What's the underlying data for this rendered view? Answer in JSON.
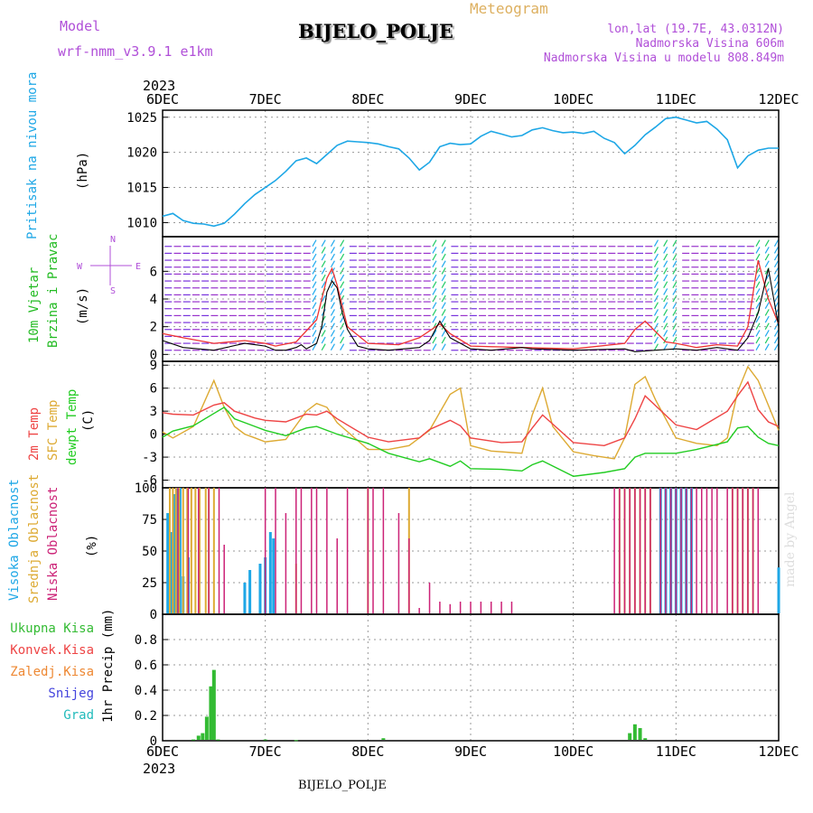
{
  "header": {
    "model_label": "Model",
    "model_name": "wrf-nmm_v3.9.1 e1km",
    "program_label": "Meteogram",
    "station": "BIJELO_POLJE",
    "coords": "lon,lat (19.7E, 43.0312N)",
    "altitude": "Nadmorska Visina 606m",
    "model_altitude": "Nadmorska Visina u modelu 808.849m"
  },
  "footer": {
    "station": "BIJELO_POLJE",
    "credit": "made by Angel"
  },
  "time_axis": {
    "year": "2023",
    "ticks": [
      "6DEC",
      "7DEC",
      "8DEC",
      "9DEC",
      "10DEC",
      "11DEC",
      "12DEC"
    ]
  },
  "colors": {
    "pressure": "#1ea7e6",
    "wind_label": "#22bb22",
    "wind_speed": "#000000",
    "gust": "#ee3333",
    "temp2m": "#ee4444",
    "sfc_temp": "#ddaa33",
    "dewpoint": "#22cc22",
    "cloud_high": "#1ea7e6",
    "cloud_mid": "#ddaa33",
    "cloud_low": "#cc2277",
    "precip_total": "#33bb33",
    "precip_conv": "#ee4444",
    "precip_frz": "#ee8833",
    "snow": "#4444dd",
    "hail": "#22bbbb",
    "purple_text": "#b04fd8",
    "grid": "#999999"
  },
  "chart_data": [
    {
      "type": "line",
      "panel": "pressure",
      "ylabel": [
        "Pritisak na nivou mora",
        "(hPa)"
      ],
      "ylim": [
        1008,
        1026
      ],
      "yticks": [
        1010,
        1015,
        1020,
        1025
      ],
      "grid": true,
      "series": [
        {
          "x": [
            0,
            0.1,
            0.2,
            0.3,
            0.4,
            0.5,
            0.6,
            0.7,
            0.8,
            0.9,
            1.0,
            1.1,
            1.2,
            1.3,
            1.4,
            1.5,
            1.6,
            1.7,
            1.8,
            1.9,
            2.0,
            2.1,
            2.2,
            2.3,
            2.4,
            2.5,
            2.6,
            2.7,
            2.8,
            2.9,
            3.0,
            3.1,
            3.2,
            3.3,
            3.4,
            3.5,
            3.6,
            3.7,
            3.8,
            3.9,
            4.0,
            4.1,
            4.2,
            4.3,
            4.4,
            4.5,
            4.6,
            4.7,
            4.8,
            4.9,
            5.0,
            5.1,
            5.2,
            5.3,
            5.4,
            5.5,
            5.6,
            5.7,
            5.8,
            5.9,
            6.0
          ],
          "values": [
            1010.9,
            1011.3,
            1010.3,
            1009.9,
            1009.8,
            1009.5,
            1009.9,
            1011.2,
            1012.7,
            1014.0,
            1015.0,
            1016.0,
            1017.3,
            1018.8,
            1019.2,
            1018.4,
            1019.7,
            1021.0,
            1021.6,
            1021.5,
            1021.4,
            1021.2,
            1020.8,
            1020.5,
            1019.2,
            1017.5,
            1018.6,
            1020.8,
            1021.3,
            1021.1,
            1021.2,
            1022.3,
            1023.0,
            1022.6,
            1022.2,
            1022.4,
            1023.2,
            1023.5,
            1023.1,
            1022.8,
            1022.9,
            1022.7,
            1023.0,
            1022.0,
            1021.4,
            1019.8,
            1021.0,
            1022.5,
            1023.6,
            1024.8,
            1025.0,
            1024.6,
            1024.2,
            1024.4,
            1023.3,
            1021.8,
            1017.8,
            1019.5,
            1020.3,
            1020.6,
            1020.6
          ]
        }
      ]
    },
    {
      "type": "line",
      "panel": "wind",
      "ylabel": [
        "10m Vjetar",
        "Brzina i Pravac",
        "(m/s)"
      ],
      "compass": {
        "w": "W",
        "e": "E",
        "n": "N",
        "s": "S"
      },
      "ylim": [
        -0.5,
        8.5
      ],
      "yticks": [
        0,
        2,
        4,
        6
      ],
      "grid": true,
      "series": [
        {
          "name": "speed",
          "x": [
            0,
            0.2,
            0.5,
            0.8,
            1.0,
            1.1,
            1.2,
            1.3,
            1.35,
            1.4,
            1.5,
            1.55,
            1.6,
            1.65,
            1.7,
            1.75,
            1.8,
            1.9,
            2.0,
            2.2,
            2.5,
            2.6,
            2.7,
            2.8,
            3.0,
            3.2,
            3.5,
            3.6,
            4.0,
            4.5,
            4.6,
            4.8,
            5.0,
            5.2,
            5.4,
            5.6,
            5.7,
            5.8,
            5.9,
            6.0
          ],
          "values": [
            1.0,
            0.5,
            0.3,
            0.8,
            0.6,
            0.3,
            0.3,
            0.5,
            0.7,
            0.4,
            0.8,
            2.0,
            4.5,
            5.3,
            4.8,
            3.0,
            1.8,
            0.6,
            0.4,
            0.3,
            0.5,
            1.0,
            2.4,
            1.2,
            0.4,
            0.3,
            0.5,
            0.4,
            0.3,
            0.4,
            0.2,
            0.3,
            0.4,
            0.3,
            0.5,
            0.3,
            1.2,
            3.0,
            6.2,
            2.0
          ]
        },
        {
          "name": "gust",
          "x": [
            0,
            0.2,
            0.5,
            0.8,
            1.0,
            1.1,
            1.3,
            1.5,
            1.6,
            1.65,
            1.7,
            1.8,
            2.0,
            2.3,
            2.5,
            2.7,
            2.8,
            3.0,
            3.5,
            4.0,
            4.5,
            4.6,
            4.7,
            4.9,
            5.0,
            5.2,
            5.4,
            5.6,
            5.7,
            5.8,
            5.9,
            6.0
          ],
          "values": [
            1.5,
            1.2,
            0.8,
            1.0,
            0.8,
            0.6,
            0.9,
            2.5,
            5.5,
            6.2,
            5.0,
            2.0,
            0.8,
            0.7,
            1.2,
            2.2,
            1.5,
            0.6,
            0.5,
            0.4,
            0.8,
            1.8,
            2.4,
            0.9,
            0.8,
            0.5,
            0.7,
            0.6,
            2.0,
            6.8,
            4.0,
            2.2
          ]
        }
      ]
    },
    {
      "type": "line",
      "panel": "temperature",
      "ylabel": [
        "2m Temp",
        "SFC Temp",
        "dewpt Temp",
        "(C)"
      ],
      "ylim": [
        -7,
        9.5
      ],
      "yticks": [
        -6,
        -3,
        0,
        3,
        6,
        9
      ],
      "grid": true,
      "series": [
        {
          "name": "2m Temp",
          "x": [
            0,
            0.1,
            0.3,
            0.5,
            0.6,
            0.7,
            0.9,
            1.0,
            1.2,
            1.4,
            1.5,
            1.6,
            1.7,
            2.0,
            2.2,
            2.5,
            2.6,
            2.8,
            2.9,
            3.0,
            3.3,
            3.5,
            3.6,
            3.7,
            4.0,
            4.3,
            4.5,
            4.6,
            4.7,
            5.0,
            5.2,
            5.5,
            5.6,
            5.7,
            5.8,
            5.9,
            6.0
          ],
          "values": [
            2.8,
            2.6,
            2.5,
            3.8,
            4.1,
            3.0,
            2.1,
            1.8,
            1.6,
            2.6,
            2.5,
            3.0,
            2.0,
            -0.4,
            -1.0,
            -0.5,
            0.6,
            1.8,
            1.1,
            -0.5,
            -1.1,
            -1.0,
            0.8,
            2.5,
            -1.1,
            -1.5,
            -0.5,
            2.0,
            5.0,
            1.2,
            0.6,
            3.0,
            5.0,
            6.8,
            3.2,
            1.6,
            1.0
          ]
        },
        {
          "name": "SFC Temp",
          "x": [
            0,
            0.1,
            0.3,
            0.4,
            0.5,
            0.6,
            0.7,
            0.8,
            0.9,
            1.0,
            1.2,
            1.4,
            1.5,
            1.6,
            1.7,
            2.0,
            2.2,
            2.4,
            2.5,
            2.6,
            2.8,
            2.9,
            3.0,
            3.2,
            3.4,
            3.5,
            3.6,
            3.7,
            3.8,
            4.0,
            4.2,
            4.4,
            4.5,
            4.6,
            4.7,
            4.8,
            5.0,
            5.2,
            5.4,
            5.5,
            5.6,
            5.7,
            5.8,
            6.0
          ],
          "values": [
            0.3,
            -0.5,
            1.0,
            4.0,
            7.0,
            3.5,
            1.0,
            0.0,
            -0.5,
            -1.0,
            -0.7,
            3.0,
            4.0,
            3.5,
            1.5,
            -2.0,
            -2.0,
            -1.5,
            -0.5,
            0.5,
            5.2,
            6.0,
            -1.5,
            -2.2,
            -2.4,
            -2.5,
            2.5,
            6.0,
            1.0,
            -2.3,
            -2.8,
            -3.2,
            -0.5,
            6.5,
            7.5,
            4.5,
            -0.5,
            -1.2,
            -1.5,
            -0.5,
            5.5,
            8.8,
            7.0,
            0.5
          ]
        },
        {
          "name": "dewpt Temp",
          "x": [
            0,
            0.1,
            0.3,
            0.5,
            0.6,
            0.7,
            0.9,
            1.0,
            1.2,
            1.4,
            1.5,
            1.6,
            1.7,
            2.0,
            2.2,
            2.5,
            2.6,
            2.8,
            2.9,
            3.0,
            3.3,
            3.5,
            3.6,
            3.7,
            4.0,
            4.3,
            4.5,
            4.6,
            4.7,
            5.0,
            5.2,
            5.5,
            5.6,
            5.7,
            5.8,
            5.9,
            6.0
          ],
          "values": [
            -0.4,
            0.4,
            1.1,
            2.7,
            3.5,
            2.0,
            1.0,
            0.5,
            -0.2,
            0.8,
            1.0,
            0.5,
            0.0,
            -1.2,
            -2.5,
            -3.6,
            -3.2,
            -4.2,
            -3.5,
            -4.5,
            -4.6,
            -4.8,
            -4.0,
            -3.5,
            -5.5,
            -5.0,
            -4.5,
            -3.0,
            -2.5,
            -2.5,
            -2.0,
            -1.0,
            0.8,
            1.0,
            -0.4,
            -1.2,
            -1.5
          ]
        }
      ]
    },
    {
      "type": "bar",
      "panel": "clouds",
      "ylabel": [
        "Visoka Oblacnost",
        "Srednja Oblacnost",
        "Niska Oblacnost",
        "(%)"
      ],
      "ylim": [
        0,
        100
      ],
      "yticks": [
        0,
        25,
        50,
        75,
        100
      ],
      "grid": true,
      "series": [
        {
          "name": "Visoka Oblacnost",
          "x": [
            0.05,
            0.08,
            0.11,
            0.14,
            0.17,
            0.2,
            0.25,
            0.8,
            0.85,
            0.95,
            1.0,
            1.05,
            1.08,
            4.85,
            4.9,
            4.95,
            5.0,
            5.05,
            5.1,
            5.15,
            6.0
          ],
          "values": [
            80,
            65,
            95,
            100,
            100,
            30,
            45,
            25,
            35,
            40,
            45,
            65,
            60,
            100,
            100,
            100,
            100,
            100,
            100,
            100,
            37
          ]
        },
        {
          "name": "Srednja Oblacnost",
          "x": [
            0.07,
            0.1,
            0.13,
            0.16,
            0.2,
            0.24,
            0.28,
            0.32,
            0.36,
            0.42,
            0.45,
            0.5,
            1.3,
            2.0,
            2.4,
            4.45,
            4.5,
            4.55,
            4.6,
            4.65,
            4.7,
            4.75,
            5.55,
            5.6,
            5.65,
            5.7,
            5.75
          ],
          "values": [
            100,
            100,
            100,
            100,
            100,
            100,
            100,
            100,
            100,
            100,
            100,
            100,
            40,
            100,
            100,
            100,
            100,
            100,
            100,
            100,
            100,
            100,
            100,
            100,
            100,
            100,
            100
          ]
        },
        {
          "name": "Niska Oblacnost",
          "x": [
            0.15,
            0.25,
            0.35,
            0.45,
            0.55,
            0.6,
            1.0,
            1.1,
            1.2,
            1.3,
            1.35,
            1.45,
            1.5,
            1.6,
            1.7,
            1.8,
            2.0,
            2.05,
            2.15,
            2.3,
            2.4,
            2.5,
            2.6,
            2.7,
            2.8,
            2.9,
            3.0,
            3.1,
            3.2,
            3.3,
            3.4,
            4.4,
            4.45,
            4.5,
            4.55,
            4.6,
            4.65,
            4.7,
            4.75,
            4.85,
            4.9,
            4.95,
            5.0,
            5.05,
            5.1,
            5.15,
            5.2,
            5.25,
            5.3,
            5.35,
            5.4,
            5.5,
            5.55,
            5.6,
            5.65,
            5.7,
            5.75,
            5.8
          ],
          "values": [
            100,
            100,
            100,
            100,
            100,
            55,
            100,
            100,
            80,
            100,
            100,
            100,
            100,
            100,
            60,
            100,
            100,
            100,
            100,
            80,
            60,
            5,
            25,
            10,
            8,
            10,
            10,
            10,
            10,
            10,
            10,
            100,
            100,
            100,
            100,
            100,
            100,
            100,
            100,
            100,
            100,
            100,
            100,
            100,
            100,
            100,
            100,
            100,
            100,
            100,
            100,
            100,
            100,
            100,
            100,
            100,
            100,
            100
          ]
        }
      ]
    },
    {
      "type": "bar",
      "panel": "precipitation",
      "ylabel": [
        "1hr Precip (mm)"
      ],
      "legend": [
        "Ukupna Kisa",
        "Konvek.Kisa",
        "Zaledj.Kisa",
        "Snijeg",
        "Grad"
      ],
      "ylim": [
        0,
        1.0
      ],
      "yticks": [
        0,
        0.2,
        0.4,
        0.6,
        0.8
      ],
      "grid": true,
      "series": [
        {
          "name": "Ukupna Kisa",
          "x": [
            0.3,
            0.35,
            0.39,
            0.43,
            0.47,
            0.5,
            0.54,
            1.0,
            1.3,
            2.15,
            4.55,
            4.6,
            4.65,
            4.7
          ],
          "values": [
            0.01,
            0.04,
            0.06,
            0.19,
            0.43,
            0.56,
            0.01,
            0.01,
            0.005,
            0.02,
            0.06,
            0.13,
            0.1,
            0.02
          ]
        }
      ]
    }
  ]
}
